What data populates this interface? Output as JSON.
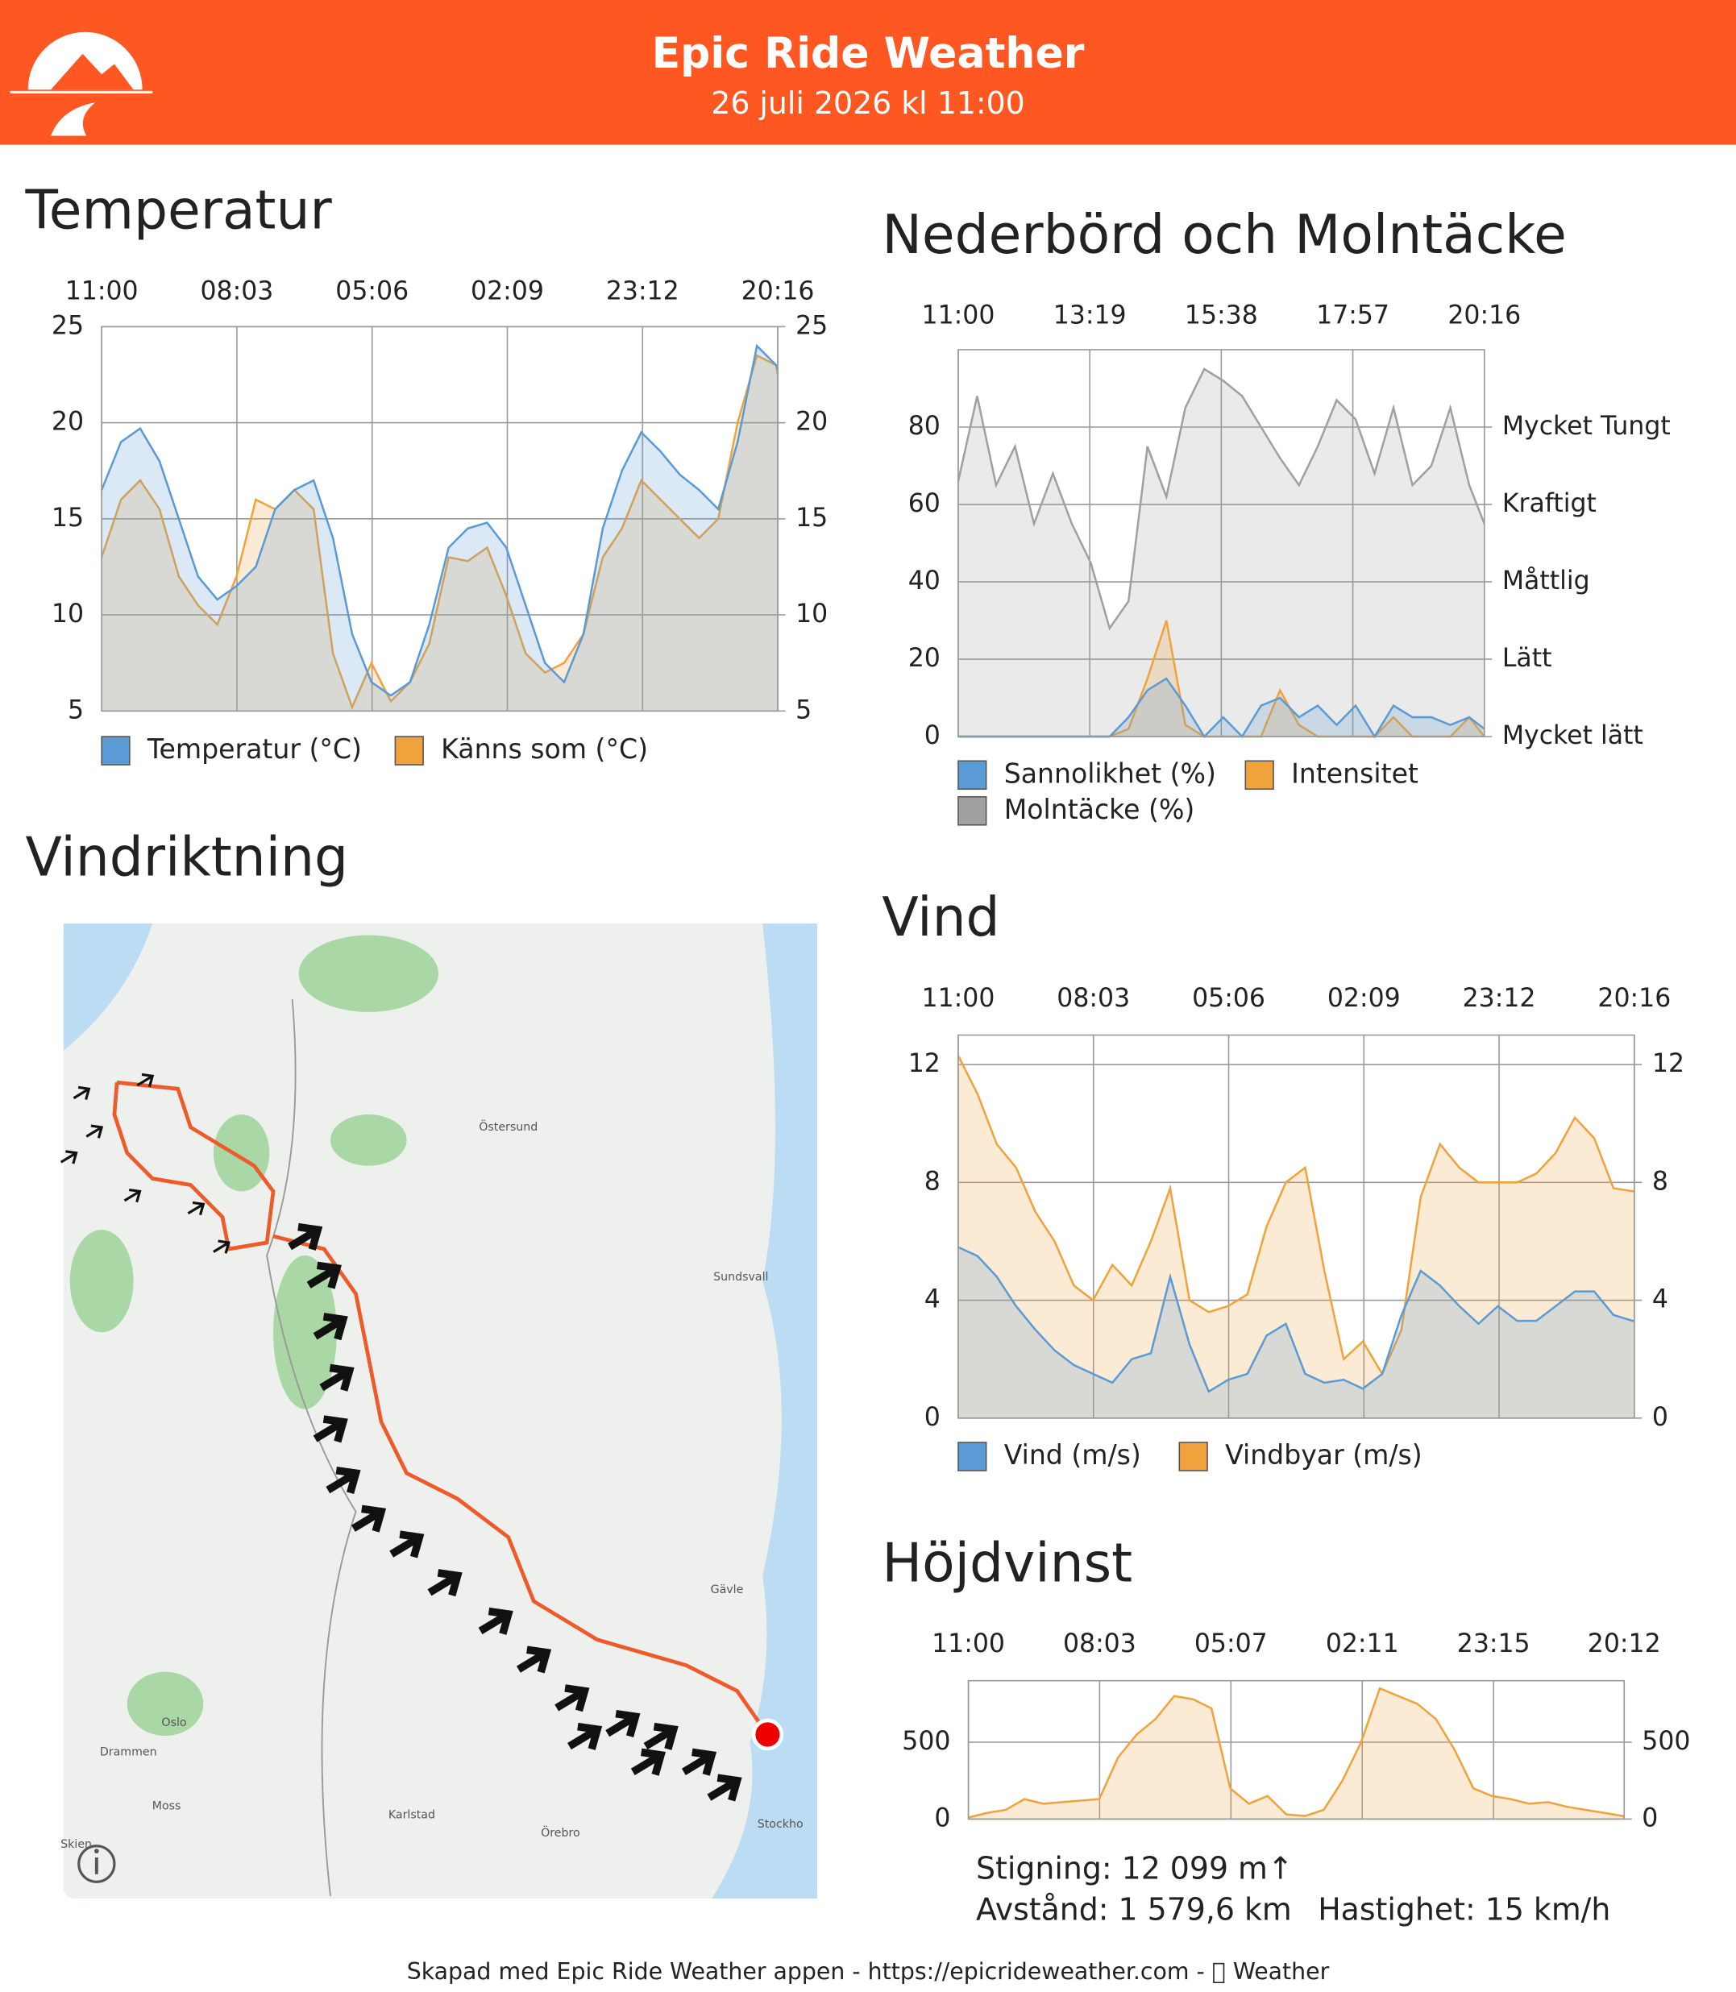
{
  "header": {
    "title": "Epic Ride Weather",
    "subtitle": "26 juli 2026 kl 11:00"
  },
  "chart_data": [
    {
      "type": "area",
      "title": "Temperatur",
      "x": [
        0,
        180,
        360,
        540,
        720,
        900,
        1080,
        1260,
        1440,
        1620,
        1800,
        1980,
        2160,
        2340,
        2520,
        2700,
        2880,
        3060,
        3240,
        3420,
        3600,
        3780,
        3960,
        4140,
        4320,
        4500,
        4680,
        4860,
        5040,
        5220,
        5400,
        5580,
        5760,
        5940,
        6120,
        6300,
        6315
      ],
      "xlim": [
        0,
        6315
      ],
      "xticks": [
        {
          "value": 0,
          "label": "11:00"
        },
        {
          "value": 1263,
          "label": "08:03"
        },
        {
          "value": 2526,
          "label": "05:06"
        },
        {
          "value": 3789,
          "label": "02:09"
        },
        {
          "value": 5052,
          "label": "23:12"
        },
        {
          "value": 6315,
          "label": "20:16"
        }
      ],
      "ylim": [
        5,
        25
      ],
      "yticks": [
        5,
        10,
        15,
        20,
        25
      ],
      "y2lim": [
        5,
        25
      ],
      "y2ticks": [
        5,
        10,
        15,
        20,
        25
      ],
      "grid": true,
      "series": [
        {
          "name": "Temperatur (°C)",
          "color": "#5b9bd5",
          "values": [
            16.5,
            19,
            19.7,
            18,
            15,
            12,
            10.8,
            11.5,
            12.5,
            15.5,
            16.5,
            17,
            14,
            9,
            6.5,
            5.8,
            6.5,
            9.5,
            13.5,
            14.5,
            14.8,
            13.5,
            10.5,
            7.5,
            6.5,
            9,
            14.5,
            17.5,
            19.5,
            18.5,
            17.3,
            16.5,
            15.5,
            19,
            24,
            23,
            22.8
          ]
        },
        {
          "name": "Känns som (°C)",
          "color": "#f0a33c",
          "values": [
            13,
            16,
            17,
            15.5,
            12,
            10.5,
            9.5,
            12,
            16,
            15.5,
            16.5,
            15.5,
            8,
            5.2,
            7.5,
            5.5,
            6.5,
            8.5,
            13,
            12.8,
            13.5,
            11,
            8,
            7,
            7.5,
            9,
            13,
            14.5,
            17,
            16,
            15,
            14,
            15,
            20,
            23.5,
            23,
            22.5
          ]
        }
      ]
    },
    {
      "type": "area",
      "title": "Nederbörd och Molntäcke",
      "x": [
        0,
        20,
        40,
        60,
        80,
        100,
        120,
        140,
        160,
        180,
        200,
        220,
        240,
        260,
        280,
        300,
        320,
        340,
        360,
        380,
        400,
        420,
        440,
        460,
        480,
        500,
        520,
        540,
        556
      ],
      "xlim": [
        0,
        556
      ],
      "xticks": [
        {
          "value": 0,
          "label": "11:00"
        },
        {
          "value": 139,
          "label": "13:19"
        },
        {
          "value": 278,
          "label": "15:38"
        },
        {
          "value": 417,
          "label": "17:57"
        },
        {
          "value": 556,
          "label": "20:16"
        }
      ],
      "ylim": [
        0,
        100
      ],
      "yticks": [
        0,
        20,
        40,
        60,
        80
      ],
      "y2lim": [
        0,
        100
      ],
      "y2ticks": [
        {
          "value": 0,
          "label": "Mycket lätt"
        },
        {
          "value": 20,
          "label": "Lätt"
        },
        {
          "value": 40,
          "label": "Måttlig"
        },
        {
          "value": 60,
          "label": "Kraftigt"
        },
        {
          "value": 80,
          "label": "Mycket Tungt"
        }
      ],
      "grid": true,
      "series": [
        {
          "name": "Sannolikhet (%)",
          "color": "#5b9bd5",
          "values": [
            0,
            0,
            0,
            0,
            0,
            0,
            0,
            0,
            0,
            5,
            12,
            15,
            8,
            0,
            5,
            0,
            8,
            10,
            5,
            8,
            3,
            8,
            0,
            8,
            5,
            5,
            3,
            5,
            2
          ]
        },
        {
          "name": "Intensitet",
          "color": "#f0a33c",
          "axis": "y2",
          "values": [
            0,
            0,
            0,
            0,
            0,
            0,
            0,
            0,
            0,
            2,
            15,
            30,
            3,
            0,
            0,
            0,
            0,
            12,
            3,
            0,
            0,
            0,
            0,
            5,
            0,
            0,
            0,
            5,
            0
          ]
        },
        {
          "name": "Molntäcke (%)",
          "color": "#a0a0a0",
          "values": [
            66,
            88,
            65,
            75,
            55,
            68,
            55,
            45,
            28,
            35,
            75,
            62,
            85,
            95,
            92,
            88,
            80,
            72,
            65,
            75,
            87,
            82,
            68,
            85,
            65,
            70,
            85,
            65,
            55
          ]
        }
      ]
    },
    {
      "type": "area",
      "title": "Vind",
      "x": [
        0,
        180,
        360,
        540,
        720,
        900,
        1080,
        1260,
        1440,
        1620,
        1800,
        1980,
        2160,
        2340,
        2520,
        2700,
        2880,
        3060,
        3240,
        3420,
        3600,
        3780,
        3960,
        4140,
        4320,
        4500,
        4680,
        4860,
        5040,
        5220,
        5400,
        5580,
        5760,
        5940,
        6120,
        6300,
        6315
      ],
      "xlim": [
        0,
        6315
      ],
      "xticks": [
        {
          "value": 0,
          "label": "11:00"
        },
        {
          "value": 1263,
          "label": "08:03"
        },
        {
          "value": 2526,
          "label": "05:06"
        },
        {
          "value": 3789,
          "label": "02:09"
        },
        {
          "value": 5052,
          "label": "23:12"
        },
        {
          "value": 6315,
          "label": "20:16"
        }
      ],
      "ylim": [
        0,
        13
      ],
      "yticks": [
        0,
        4,
        8,
        12
      ],
      "y2lim": [
        0,
        13
      ],
      "y2ticks": [
        0,
        4,
        8,
        12
      ],
      "grid": true,
      "series": [
        {
          "name": "Vind (m/s)",
          "color": "#5b9bd5",
          "values": [
            5.8,
            5.5,
            4.8,
            3.8,
            3,
            2.3,
            1.8,
            1.5,
            1.2,
            2,
            2.2,
            4.8,
            2.5,
            0.9,
            1.3,
            1.5,
            2.8,
            3.2,
            1.5,
            1.2,
            1.3,
            1.0,
            1.5,
            3.5,
            5,
            4.5,
            3.8,
            3.2,
            3.8,
            3.3,
            3.3,
            3.8,
            4.3,
            4.3,
            3.5,
            3.3,
            3.3
          ]
        },
        {
          "name": "Vindbyar (m/s)",
          "color": "#f0a33c",
          "values": [
            12.3,
            11,
            9.3,
            8.5,
            7,
            6,
            4.5,
            4,
            5.2,
            4.5,
            6,
            7.8,
            4,
            3.6,
            3.8,
            4.2,
            6.5,
            8,
            8.5,
            5,
            2,
            2.6,
            1.5,
            3,
            7.5,
            9.3,
            8.5,
            8,
            8,
            8,
            8.3,
            9,
            10.2,
            9.5,
            7.8,
            7.7,
            7.7
          ]
        }
      ]
    },
    {
      "type": "area",
      "title": "Höjdvinst",
      "x": [
        0,
        180,
        360,
        540,
        720,
        900,
        1080,
        1260,
        1440,
        1620,
        1800,
        1980,
        2160,
        2340,
        2520,
        2700,
        2880,
        3060,
        3240,
        3420,
        3600,
        3780,
        3960,
        4140,
        4320,
        4500,
        4680,
        4860,
        5040,
        5220,
        5400,
        5580,
        5760,
        5940,
        6120,
        6300,
        6312
      ],
      "xlim": [
        0,
        6312
      ],
      "xticks": [
        {
          "value": 0,
          "label": "11:00"
        },
        {
          "value": 1263,
          "label": "08:03"
        },
        {
          "value": 2527,
          "label": "05:07"
        },
        {
          "value": 3791,
          "label": "02:11"
        },
        {
          "value": 5055,
          "label": "23:15"
        },
        {
          "value": 6312,
          "label": "20:12"
        }
      ],
      "ylim": [
        0,
        900
      ],
      "yticks": [
        0,
        500
      ],
      "y2lim": [
        0,
        900
      ],
      "y2ticks": [
        0,
        500
      ],
      "grid": true,
      "series": [
        {
          "color": "#f0a33c",
          "values": [
            10,
            40,
            60,
            130,
            100,
            110,
            120,
            130,
            400,
            550,
            650,
            800,
            780,
            720,
            200,
            100,
            150,
            30,
            20,
            60,
            250,
            500,
            850,
            800,
            750,
            650,
            450,
            200,
            150,
            130,
            100,
            110,
            80,
            60,
            40,
            20,
            10
          ]
        }
      ]
    }
  ],
  "map": {
    "title": "Vindriktning",
    "labels": [
      "Östersund",
      "Sundsvall",
      "Gävle",
      "Oslo",
      "Drammen",
      "Moss",
      "Karlstad",
      "Örebro",
      "Skien",
      "Stockho"
    ]
  },
  "stats": {
    "climb": "Stigning: 12 099 m↑",
    "distance": "Avstånd: 1 579,6 km",
    "speed": "Hastighet: 15 km/h"
  },
  "footer": "Skapad med Epic Ride Weather appen - https://epicrideweather.com -  Weather"
}
